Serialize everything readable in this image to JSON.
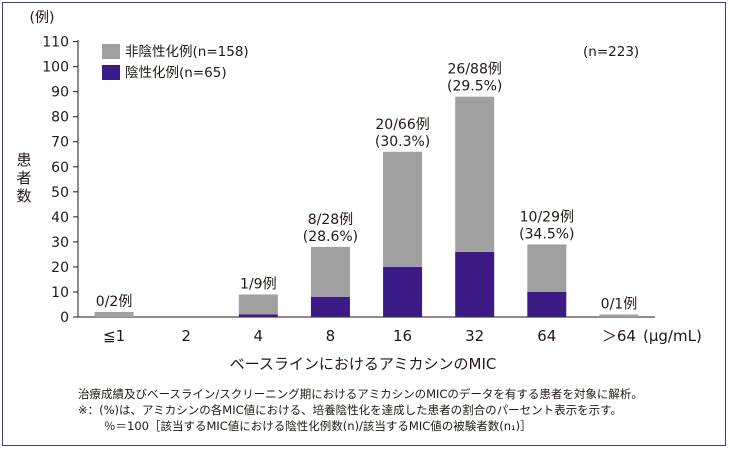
{
  "chart_data": {
    "type": "bar",
    "stacked": true,
    "categories": [
      "≦1",
      "2",
      "4",
      "8",
      "16",
      "32",
      "64",
      "＞64"
    ],
    "series": [
      {
        "name": "非陰性化例(n=158)",
        "values": [
          2,
          0,
          8,
          20,
          46,
          62,
          19,
          1
        ],
        "color": "#a0a0a0"
      },
      {
        "name": "陰性化例(n=65)",
        "values": [
          0,
          0,
          1,
          8,
          20,
          26,
          10,
          0
        ],
        "color": "#3b1c87"
      }
    ],
    "totals": [
      2,
      0,
      9,
      28,
      66,
      88,
      29,
      1
    ],
    "annotations": [
      {
        "category": "≦1",
        "lines": [
          "0/2例"
        ]
      },
      {
        "category": "2",
        "lines": []
      },
      {
        "category": "4",
        "lines": [
          "1/9例"
        ]
      },
      {
        "category": "8",
        "lines": [
          "8/28例",
          "(28.6%)"
        ]
      },
      {
        "category": "16",
        "lines": [
          "20/66例",
          "(30.3%)"
        ]
      },
      {
        "category": "32",
        "lines": [
          "26/88例",
          "(29.5%)"
        ]
      },
      {
        "category": "64",
        "lines": [
          "10/29例",
          "(34.5%)"
        ]
      },
      {
        "category": "＞64",
        "lines": [
          "0/1例"
        ]
      }
    ],
    "y_unit": "(例)",
    "ylabel": "患者数",
    "xlabel": "ベースラインにおけるアミカシンのMIC",
    "x_unit": "(μg/mL)",
    "ylim": [
      0,
      110
    ],
    "yticks": [
      0,
      10,
      20,
      30,
      40,
      50,
      60,
      70,
      80,
      90,
      100,
      110
    ],
    "n_total": "(n=223)",
    "legend_position": "top-left",
    "grid": false
  },
  "notes": [
    "治療成績及びベースライン/スクリーニング期におけるアミカシンのMICのデータを有する患者を対象に解析。",
    "※：(%)は、アミカシンの各MIC値における、培養陰性化を達成した患者の割合のパーセント表示を示す。",
    "％＝100［該当するMIC値における陰性化例数(n)/該当するMIC値の被験者数(n₁)］"
  ]
}
